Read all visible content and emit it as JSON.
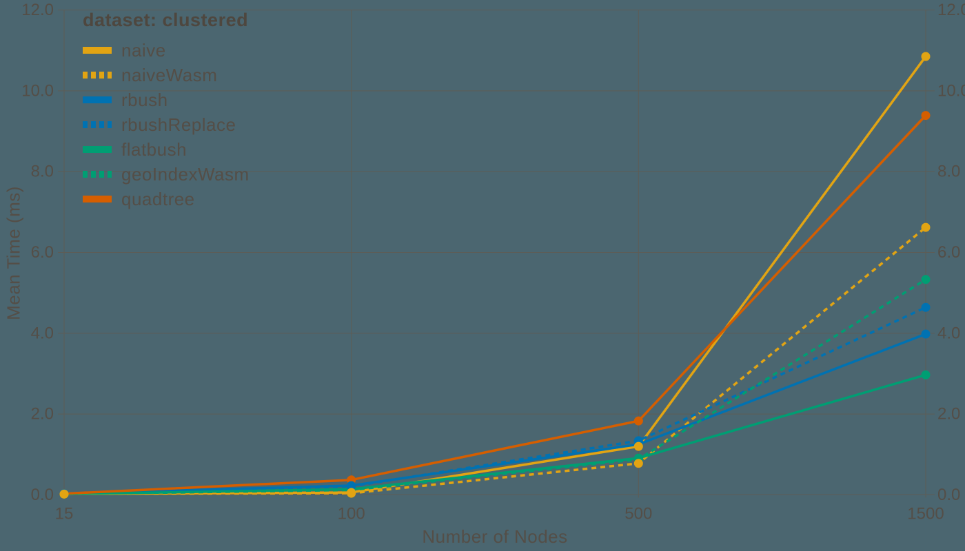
{
  "colors": {
    "background": "#4B6670",
    "grid": "#5E5C55",
    "text": "#544E47",
    "legend_title_text": "#4E473F"
  },
  "chart_data": {
    "type": "line",
    "xlabel": "Number of Nodes",
    "ylabel": "Mean Time (ms)",
    "categories": [
      "15",
      "100",
      "500",
      "1500"
    ],
    "x_scale": "point",
    "ylim": [
      0,
      12
    ],
    "yticks": [
      0,
      2,
      4,
      6,
      8,
      10,
      12
    ],
    "ytick_labels": [
      "0.0",
      "2.0",
      "4.0",
      "6.0",
      "8.0",
      "10.0",
      "12.0"
    ],
    "ytick_labels_sides": "both",
    "grid": true,
    "legend": {
      "title": "dataset: clustered",
      "position": "top-left-inside"
    },
    "series": [
      {
        "name": "naive",
        "color": "#E2A413",
        "style": "solid",
        "marker": "circle",
        "values": [
          0.02,
          0.06,
          1.2,
          10.85
        ]
      },
      {
        "name": "naiveWasm",
        "color": "#E2A413",
        "style": "dashed",
        "marker": "circle",
        "values": [
          0.02,
          0.04,
          0.78,
          6.62
        ]
      },
      {
        "name": "rbush",
        "color": "#0072B2",
        "style": "solid",
        "marker": "circle",
        "values": [
          0.03,
          0.23,
          1.25,
          3.98
        ]
      },
      {
        "name": "rbushReplace",
        "color": "#0072B2",
        "style": "dashed",
        "marker": "circle",
        "values": [
          0.03,
          0.21,
          1.34,
          4.64
        ]
      },
      {
        "name": "flatbush",
        "color": "#009E73",
        "style": "solid",
        "marker": "circle",
        "values": [
          0.02,
          0.14,
          0.91,
          2.97
        ]
      },
      {
        "name": "geoIndexWasm",
        "color": "#009E73",
        "style": "dashed",
        "marker": "circle",
        "values": [
          0.02,
          0.12,
          0.88,
          5.33
        ]
      },
      {
        "name": "quadtree",
        "color": "#D55E00",
        "style": "solid",
        "marker": "circle",
        "values": [
          0.03,
          0.37,
          1.83,
          9.39
        ]
      }
    ]
  }
}
